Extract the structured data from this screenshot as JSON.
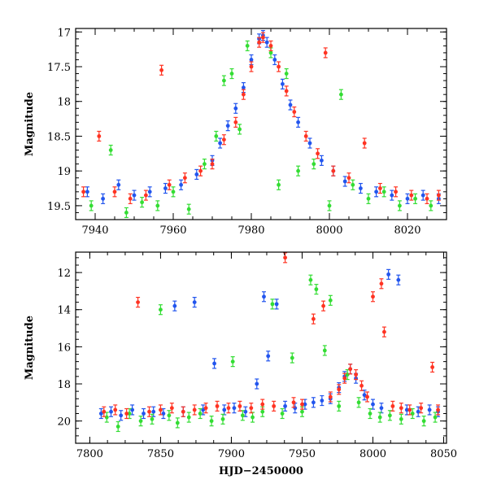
{
  "chart_data": [
    {
      "type": "scatter",
      "title": "",
      "xlabel": "",
      "ylabel": "Magnitude",
      "xlim": [
        7935,
        8030
      ],
      "ylim": [
        19.7,
        16.95
      ],
      "y_inverted": true,
      "xticks": [
        7940,
        7960,
        7980,
        8000,
        8020
      ],
      "yticks": [
        17,
        17.5,
        18,
        18.5,
        19,
        19.5
      ],
      "series": [
        {
          "color": "#2255ee",
          "points": [
            [
              7938,
              19.3
            ],
            [
              7942,
              19.4
            ],
            [
              7946,
              19.2
            ],
            [
              7950,
              19.35
            ],
            [
              7954,
              19.3
            ],
            [
              7958,
              19.25
            ],
            [
              7962,
              19.2
            ],
            [
              7966,
              19.05
            ],
            [
              7970,
              18.85
            ],
            [
              7972,
              18.6
            ],
            [
              7974,
              18.35
            ],
            [
              7976,
              18.1
            ],
            [
              7978,
              17.8
            ],
            [
              7980,
              17.4
            ],
            [
              7982,
              17.1
            ],
            [
              7983,
              17.05
            ],
            [
              7984,
              17.15
            ],
            [
              7986,
              17.4
            ],
            [
              7988,
              17.75
            ],
            [
              7990,
              18.05
            ],
            [
              7992,
              18.3
            ],
            [
              7995,
              18.6
            ],
            [
              7998,
              18.85
            ],
            [
              8001,
              19.0
            ],
            [
              8004,
              19.15
            ],
            [
              8008,
              19.25
            ],
            [
              8012,
              19.3
            ],
            [
              8016,
              19.35
            ],
            [
              8020,
              19.4
            ],
            [
              8024,
              19.35
            ],
            [
              8028,
              19.4
            ]
          ]
        },
        {
          "color": "#33dd33",
          "points": [
            [
              7939,
              19.5
            ],
            [
              7944,
              18.7
            ],
            [
              7948,
              19.6
            ],
            [
              7952,
              19.45
            ],
            [
              7956,
              19.5
            ],
            [
              7960,
              19.3
            ],
            [
              7964,
              19.55
            ],
            [
              7968,
              18.9
            ],
            [
              7971,
              18.5
            ],
            [
              7973,
              17.7
            ],
            [
              7975,
              17.6
            ],
            [
              7977,
              18.4
            ],
            [
              7979,
              17.2
            ],
            [
              7985,
              17.3
            ],
            [
              7987,
              19.2
            ],
            [
              7989,
              17.6
            ],
            [
              7992,
              19.0
            ],
            [
              7996,
              18.9
            ],
            [
              8000,
              19.5
            ],
            [
              8003,
              17.9
            ],
            [
              8006,
              19.2
            ],
            [
              8010,
              19.4
            ],
            [
              8014,
              19.3
            ],
            [
              8018,
              19.5
            ],
            [
              8022,
              19.4
            ],
            [
              8026,
              19.5
            ]
          ]
        },
        {
          "color": "#ff3322",
          "points": [
            [
              7937,
              19.3
            ],
            [
              7941,
              18.5
            ],
            [
              7945,
              19.3
            ],
            [
              7949,
              19.4
            ],
            [
              7953,
              19.35
            ],
            [
              7957,
              17.55
            ],
            [
              7959,
              19.2
            ],
            [
              7963,
              19.1
            ],
            [
              7967,
              19.0
            ],
            [
              7970,
              18.9
            ],
            [
              7973,
              18.55
            ],
            [
              7976,
              18.3
            ],
            [
              7978,
              17.9
            ],
            [
              7980,
              17.5
            ],
            [
              7982,
              17.15
            ],
            [
              7983,
              17.08
            ],
            [
              7985,
              17.2
            ],
            [
              7987,
              17.5
            ],
            [
              7989,
              17.85
            ],
            [
              7991,
              18.15
            ],
            [
              7994,
              18.5
            ],
            [
              7997,
              18.75
            ],
            [
              7999,
              17.3
            ],
            [
              8001,
              19.0
            ],
            [
              8005,
              19.1
            ],
            [
              8009,
              18.6
            ],
            [
              8013,
              19.25
            ],
            [
              8017,
              19.3
            ],
            [
              8021,
              19.35
            ],
            [
              8025,
              19.4
            ],
            [
              8028,
              19.35
            ]
          ]
        }
      ]
    },
    {
      "type": "scatter",
      "title": "",
      "xlabel": "HJD−2450000",
      "ylabel": "Magnitude",
      "xlim": [
        7790,
        8052
      ],
      "ylim": [
        21.2,
        10.9
      ],
      "y_inverted": true,
      "xticks": [
        7800,
        7850,
        7900,
        7950,
        8000,
        8050
      ],
      "yticks": [
        12,
        14,
        16,
        18,
        20
      ],
      "series": [
        {
          "color": "#2255ee",
          "points": [
            [
              7808,
              19.6
            ],
            [
              7815,
              19.5
            ],
            [
              7822,
              19.7
            ],
            [
              7830,
              19.4
            ],
            [
              7838,
              19.6
            ],
            [
              7845,
              19.5
            ],
            [
              7852,
              19.6
            ],
            [
              7860,
              13.8
            ],
            [
              7866,
              19.5
            ],
            [
              7874,
              13.6
            ],
            [
              7880,
              19.4
            ],
            [
              7888,
              16.9
            ],
            [
              7895,
              19.4
            ],
            [
              7902,
              19.3
            ],
            [
              7910,
              19.5
            ],
            [
              7918,
              18.0
            ],
            [
              7923,
              13.3
            ],
            [
              7926,
              16.5
            ],
            [
              7932,
              13.7
            ],
            [
              7938,
              19.2
            ],
            [
              7945,
              19.3
            ],
            [
              7952,
              19.1
            ],
            [
              7958,
              19.0
            ],
            [
              7964,
              18.9
            ],
            [
              7970,
              18.8
            ],
            [
              7976,
              18.2
            ],
            [
              7980,
              17.6
            ],
            [
              7984,
              17.2
            ],
            [
              7988,
              17.7
            ],
            [
              7994,
              18.6
            ],
            [
              8000,
              19.1
            ],
            [
              8006,
              19.3
            ],
            [
              8011,
              12.1
            ],
            [
              8018,
              12.4
            ],
            [
              8024,
              19.4
            ],
            [
              8032,
              19.5
            ],
            [
              8040,
              19.4
            ],
            [
              8046,
              19.5
            ]
          ]
        },
        {
          "color": "#33dd33",
          "points": [
            [
              7812,
              19.8
            ],
            [
              7820,
              20.3
            ],
            [
              7828,
              19.6
            ],
            [
              7836,
              20.0
            ],
            [
              7844,
              19.9
            ],
            [
              7850,
              14.0
            ],
            [
              7856,
              19.7
            ],
            [
              7862,
              20.1
            ],
            [
              7870,
              19.8
            ],
            [
              7878,
              19.6
            ],
            [
              7886,
              20.0
            ],
            [
              7894,
              19.9
            ],
            [
              7901,
              16.8
            ],
            [
              7908,
              19.7
            ],
            [
              7915,
              19.8
            ],
            [
              7922,
              19.5
            ],
            [
              7929,
              13.7
            ],
            [
              7936,
              19.6
            ],
            [
              7943,
              16.6
            ],
            [
              7950,
              19.5
            ],
            [
              7956,
              12.4
            ],
            [
              7960,
              12.9
            ],
            [
              7966,
              16.2
            ],
            [
              7970,
              13.5
            ],
            [
              7976,
              19.2
            ],
            [
              7982,
              17.5
            ],
            [
              7990,
              19.0
            ],
            [
              7998,
              19.6
            ],
            [
              8005,
              19.8
            ],
            [
              8012,
              19.7
            ],
            [
              8020,
              19.9
            ],
            [
              8028,
              19.6
            ],
            [
              8036,
              20.0
            ],
            [
              8044,
              19.8
            ]
          ]
        },
        {
          "color": "#ff3322",
          "points": [
            [
              7810,
              19.5
            ],
            [
              7818,
              19.4
            ],
            [
              7826,
              19.6
            ],
            [
              7834,
              13.6
            ],
            [
              7842,
              19.5
            ],
            [
              7850,
              19.4
            ],
            [
              7858,
              19.3
            ],
            [
              7866,
              19.5
            ],
            [
              7874,
              19.4
            ],
            [
              7882,
              19.3
            ],
            [
              7890,
              19.2
            ],
            [
              7898,
              19.3
            ],
            [
              7906,
              19.2
            ],
            [
              7914,
              19.3
            ],
            [
              7922,
              19.1
            ],
            [
              7930,
              19.2
            ],
            [
              7938,
              11.2
            ],
            [
              7944,
              19.0
            ],
            [
              7950,
              19.1
            ],
            [
              7958,
              14.5
            ],
            [
              7965,
              13.8
            ],
            [
              7970,
              18.7
            ],
            [
              7976,
              18.3
            ],
            [
              7980,
              17.7
            ],
            [
              7984,
              17.2
            ],
            [
              7988,
              17.5
            ],
            [
              7992,
              18.1
            ],
            [
              7996,
              18.7
            ],
            [
              8000,
              13.3
            ],
            [
              8006,
              12.6
            ],
            [
              8008,
              15.2
            ],
            [
              8014,
              19.2
            ],
            [
              8020,
              19.3
            ],
            [
              8026,
              19.4
            ],
            [
              8034,
              19.3
            ],
            [
              8042,
              17.1
            ],
            [
              8046,
              19.4
            ]
          ]
        }
      ]
    }
  ]
}
